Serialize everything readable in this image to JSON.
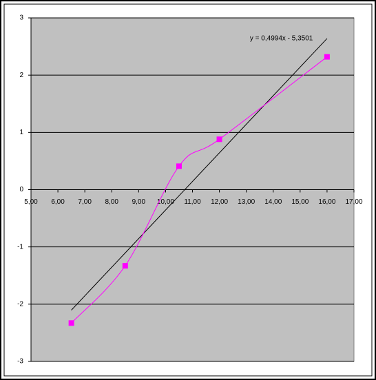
{
  "chart_data": {
    "type": "scatter",
    "x": [
      6.5,
      8.5,
      10.5,
      12,
      16
    ],
    "series": [
      {
        "color": "#ff00ff",
        "values": [
          -2.33,
          -1.33,
          0.41,
          0.88,
          2.32
        ]
      }
    ],
    "smooth": true,
    "trendline": {
      "label": "y = 0,4994x - 5,3501",
      "slope": 0.4994,
      "intercept": -5.3501,
      "color": "#000000"
    },
    "xlim": [
      5,
      17
    ],
    "xticks": [
      {
        "value": 5,
        "label": "5,00"
      },
      {
        "value": 6,
        "label": "6,00"
      },
      {
        "value": 7,
        "label": "7,00"
      },
      {
        "value": 8,
        "label": "8,00"
      },
      {
        "value": 9,
        "label": "9,00"
      },
      {
        "value": 10,
        "label": "10,00"
      },
      {
        "value": 11,
        "label": "11,00"
      },
      {
        "value": 12,
        "label": "12,00"
      },
      {
        "value": 13,
        "label": "13,00"
      },
      {
        "value": 14,
        "label": "14,00"
      },
      {
        "value": 15,
        "label": "15,00"
      },
      {
        "value": 16,
        "label": "16,00"
      },
      {
        "value": 17,
        "label": "17,00"
      }
    ],
    "ylim": [
      -3,
      3
    ],
    "yticks": [
      -3,
      -2,
      -1,
      0,
      1,
      2,
      3
    ],
    "grid": true,
    "plot_background": "#c0c0c0"
  }
}
